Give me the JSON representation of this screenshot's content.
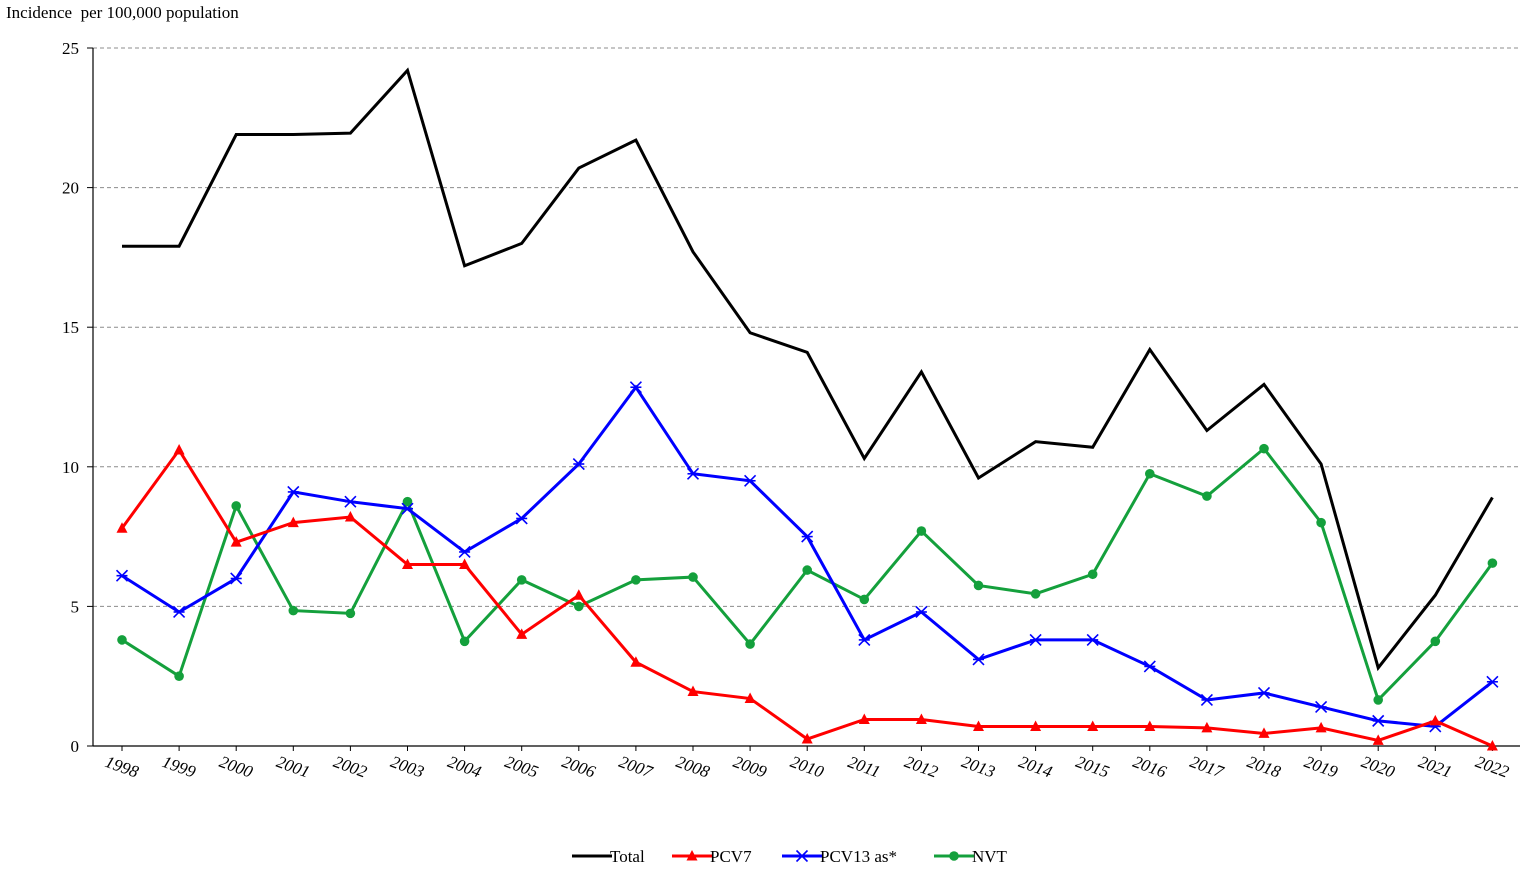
{
  "chart_data": {
    "type": "line",
    "ylabel": "Incidence  per 100,000 population",
    "xlabel": "",
    "ylim": [
      0,
      25
    ],
    "yticks": [
      0,
      5,
      10,
      15,
      20,
      25
    ],
    "grid": "horizontal dashed",
    "legend_position": "bottom-center",
    "categories": [
      "1998",
      "1999",
      "2000",
      "2001",
      "2002",
      "2003",
      "2004",
      "2005",
      "2006",
      "2007",
      "2008",
      "2009",
      "2010",
      "2011",
      "2012",
      "2013",
      "2014",
      "2015",
      "2016",
      "2017",
      "2018",
      "2019",
      "2020",
      "2021",
      "2022"
    ],
    "series": [
      {
        "name": "Total",
        "color": "#000000",
        "marker": "none",
        "values": [
          17.9,
          17.9,
          21.9,
          21.9,
          21.95,
          24.2,
          17.2,
          18.0,
          20.7,
          21.7,
          17.7,
          14.8,
          14.1,
          10.3,
          13.4,
          9.6,
          10.9,
          10.7,
          14.2,
          11.3,
          12.95,
          10.1,
          2.8,
          5.4,
          8.9
        ]
      },
      {
        "name": "PCV7",
        "color": "#ff0000",
        "marker": "triangle",
        "values": [
          7.8,
          10.6,
          7.3,
          8.0,
          8.2,
          6.5,
          6.5,
          4.0,
          5.4,
          3.0,
          1.95,
          1.7,
          0.25,
          0.95,
          0.95,
          0.7,
          0.7,
          0.7,
          0.7,
          0.65,
          0.45,
          0.65,
          0.2,
          0.9,
          0.0
        ]
      },
      {
        "name": "PCV13 as*",
        "color": "#0000ff",
        "marker": "asterisk",
        "values": [
          6.1,
          4.8,
          6.0,
          9.1,
          8.75,
          8.5,
          6.95,
          8.15,
          10.1,
          12.85,
          9.75,
          9.5,
          7.5,
          3.8,
          4.8,
          3.1,
          3.8,
          3.8,
          2.85,
          1.65,
          1.9,
          1.4,
          0.9,
          0.7,
          2.3
        ]
      },
      {
        "name": "NVT",
        "color": "#14a03c",
        "marker": "circle",
        "values": [
          3.8,
          2.5,
          8.6,
          4.85,
          4.75,
          8.75,
          3.75,
          5.95,
          5.0,
          5.95,
          6.05,
          3.65,
          6.3,
          5.25,
          7.7,
          5.75,
          5.45,
          6.15,
          9.75,
          8.95,
          10.65,
          8.0,
          1.65,
          3.75,
          6.55
        ]
      }
    ]
  }
}
